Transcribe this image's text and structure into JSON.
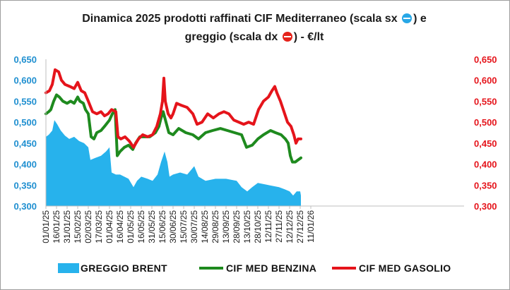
{
  "title": {
    "part1": "Dinamica 2025 prodotti raffinati CIF Mediterraneo (scala sx",
    "part2": ") e",
    "part3": "greggio (scala dx",
    "part4": ") - €/lt",
    "icon_left": "blue-circle-minus-icon",
    "icon_right": "red-circle-minus-icon"
  },
  "chart_data": {
    "type": "line",
    "x_ticks": [
      "01/01/25",
      "16/01/25",
      "31/01/25",
      "15/02/25",
      "02/03/25",
      "17/03/25",
      "01/04/25",
      "16/04/25",
      "01/05/25",
      "16/05/25",
      "31/05/25",
      "15/06/25",
      "30/06/25",
      "15/07/25",
      "30/07/25",
      "14/08/25",
      "29/08/25",
      "13/09/25",
      "28/09/25",
      "13/10/25",
      "28/10/25",
      "12/11/25",
      "27/11/25",
      "12/12/25",
      "27/12/25",
      "11/01/26"
    ],
    "y_left_ticks": [
      "0,650",
      "0,600",
      "0,550",
      "0,500",
      "0,450",
      "0,400",
      "0,350",
      "0,300"
    ],
    "y_right_ticks": [
      "0,650",
      "0,600",
      "0,550",
      "0,500",
      "0,450",
      "0,400",
      "0,350",
      "0,300"
    ],
    "ylim": [
      0.3,
      0.65
    ],
    "colors": {
      "brent": "#27b2ec",
      "benzina": "#1e8a1e",
      "gasolio": "#e5141b",
      "left_axis": "#1f8fd0",
      "right_axis": "#e5141b"
    },
    "series": [
      {
        "name": "GREGGIO BRENT",
        "kind": "area",
        "points": [
          [
            "01/01/25",
            0.465
          ],
          [
            "05/01/25",
            0.47
          ],
          [
            "10/01/25",
            0.48
          ],
          [
            "13/01/25",
            0.505
          ],
          [
            "17/01/25",
            0.495
          ],
          [
            "22/01/25",
            0.48
          ],
          [
            "28/01/25",
            0.468
          ],
          [
            "03/02/25",
            0.46
          ],
          [
            "10/02/25",
            0.465
          ],
          [
            "17/02/25",
            0.455
          ],
          [
            "24/02/25",
            0.45
          ],
          [
            "02/03/25",
            0.44
          ],
          [
            "05/03/25",
            0.41
          ],
          [
            "12/03/25",
            0.415
          ],
          [
            "20/03/25",
            0.42
          ],
          [
            "27/03/25",
            0.43
          ],
          [
            "01/04/25",
            0.44
          ],
          [
            "04/04/25",
            0.38
          ],
          [
            "10/04/25",
            0.375
          ],
          [
            "16/04/25",
            0.375
          ],
          [
            "22/04/25",
            0.37
          ],
          [
            "28/04/25",
            0.365
          ],
          [
            "05/05/25",
            0.345
          ],
          [
            "10/05/25",
            0.36
          ],
          [
            "16/05/25",
            0.37
          ],
          [
            "25/05/25",
            0.365
          ],
          [
            "01/06/25",
            0.36
          ],
          [
            "08/06/25",
            0.375
          ],
          [
            "13/06/25",
            0.405
          ],
          [
            "18/06/25",
            0.43
          ],
          [
            "22/06/25",
            0.405
          ],
          [
            "25/06/25",
            0.37
          ],
          [
            "30/06/25",
            0.375
          ],
          [
            "10/07/25",
            0.38
          ],
          [
            "20/07/25",
            0.375
          ],
          [
            "30/07/25",
            0.395
          ],
          [
            "05/08/25",
            0.37
          ],
          [
            "15/08/25",
            0.36
          ],
          [
            "29/08/25",
            0.365
          ],
          [
            "13/09/25",
            0.365
          ],
          [
            "28/09/25",
            0.36
          ],
          [
            "05/10/25",
            0.345
          ],
          [
            "13/10/25",
            0.335
          ],
          [
            "20/10/25",
            0.345
          ],
          [
            "28/10/25",
            0.355
          ],
          [
            "12/11/25",
            0.35
          ],
          [
            "27/11/25",
            0.345
          ],
          [
            "05/12/25",
            0.34
          ],
          [
            "12/12/25",
            0.335
          ],
          [
            "17/12/25",
            0.325
          ],
          [
            "22/12/25",
            0.335
          ],
          [
            "27/12/25",
            0.335
          ],
          [
            "28/12/25",
            0.325
          ]
        ]
      },
      {
        "name": "CIF MED BENZINA",
        "kind": "line",
        "points": [
          [
            "01/01/25",
            0.52
          ],
          [
            "05/01/25",
            0.525
          ],
          [
            "08/01/25",
            0.53
          ],
          [
            "12/01/25",
            0.55
          ],
          [
            "16/01/25",
            0.565
          ],
          [
            "20/01/25",
            0.56
          ],
          [
            "25/01/25",
            0.55
          ],
          [
            "31/01/25",
            0.545
          ],
          [
            "05/02/25",
            0.55
          ],
          [
            "10/02/25",
            0.545
          ],
          [
            "15/02/25",
            0.56
          ],
          [
            "18/02/25",
            0.55
          ],
          [
            "23/02/25",
            0.545
          ],
          [
            "26/02/25",
            0.53
          ],
          [
            "02/03/25",
            0.52
          ],
          [
            "06/03/25",
            0.465
          ],
          [
            "10/03/25",
            0.46
          ],
          [
            "14/03/25",
            0.475
          ],
          [
            "20/03/25",
            0.48
          ],
          [
            "25/03/25",
            0.49
          ],
          [
            "01/04/25",
            0.505
          ],
          [
            "05/04/25",
            0.52
          ],
          [
            "09/04/25",
            0.53
          ],
          [
            "12/04/25",
            0.42
          ],
          [
            "16/04/25",
            0.43
          ],
          [
            "22/04/25",
            0.44
          ],
          [
            "28/04/25",
            0.445
          ],
          [
            "04/05/25",
            0.435
          ],
          [
            "08/05/25",
            0.45
          ],
          [
            "14/05/25",
            0.465
          ],
          [
            "20/05/25",
            0.465
          ],
          [
            "28/05/25",
            0.465
          ],
          [
            "05/06/25",
            0.475
          ],
          [
            "10/06/25",
            0.49
          ],
          [
            "13/06/25",
            0.51
          ],
          [
            "16/06/25",
            0.525
          ],
          [
            "20/06/25",
            0.5
          ],
          [
            "24/06/25",
            0.475
          ],
          [
            "30/06/25",
            0.47
          ],
          [
            "08/07/25",
            0.485
          ],
          [
            "18/07/25",
            0.475
          ],
          [
            "28/07/25",
            0.47
          ],
          [
            "05/08/25",
            0.46
          ],
          [
            "15/08/25",
            0.475
          ],
          [
            "25/08/25",
            0.48
          ],
          [
            "05/09/25",
            0.485
          ],
          [
            "15/09/25",
            0.48
          ],
          [
            "25/09/25",
            0.475
          ],
          [
            "05/10/25",
            0.47
          ],
          [
            "12/10/25",
            0.44
          ],
          [
            "20/10/25",
            0.445
          ],
          [
            "28/10/25",
            0.46
          ],
          [
            "05/11/25",
            0.47
          ],
          [
            "15/11/25",
            0.48
          ],
          [
            "22/11/25",
            0.475
          ],
          [
            "30/11/25",
            0.47
          ],
          [
            "06/12/25",
            0.46
          ],
          [
            "10/12/25",
            0.45
          ],
          [
            "13/12/25",
            0.42
          ],
          [
            "16/12/25",
            0.405
          ],
          [
            "20/12/25",
            0.405
          ],
          [
            "24/12/25",
            0.41
          ],
          [
            "28/12/25",
            0.415
          ]
        ]
      },
      {
        "name": "CIF MED GASOLIO",
        "kind": "line",
        "points": [
          [
            "01/01/25",
            0.57
          ],
          [
            "06/01/25",
            0.575
          ],
          [
            "10/01/25",
            0.59
          ],
          [
            "14/01/25",
            0.625
          ],
          [
            "19/01/25",
            0.62
          ],
          [
            "23/01/25",
            0.6
          ],
          [
            "28/01/25",
            0.59
          ],
          [
            "04/02/25",
            0.585
          ],
          [
            "10/02/25",
            0.58
          ],
          [
            "15/02/25",
            0.595
          ],
          [
            "20/02/25",
            0.575
          ],
          [
            "25/02/25",
            0.57
          ],
          [
            "02/03/25",
            0.55
          ],
          [
            "08/03/25",
            0.525
          ],
          [
            "14/03/25",
            0.52
          ],
          [
            "20/03/25",
            0.525
          ],
          [
            "25/03/25",
            0.515
          ],
          [
            "30/03/25",
            0.52
          ],
          [
            "04/04/25",
            0.53
          ],
          [
            "10/04/25",
            0.525
          ],
          [
            "13/04/25",
            0.465
          ],
          [
            "17/04/25",
            0.46
          ],
          [
            "23/04/25",
            0.465
          ],
          [
            "29/04/25",
            0.455
          ],
          [
            "05/05/25",
            0.44
          ],
          [
            "12/05/25",
            0.46
          ],
          [
            "18/05/25",
            0.47
          ],
          [
            "25/05/25",
            0.465
          ],
          [
            "01/06/25",
            0.47
          ],
          [
            "07/06/25",
            0.49
          ],
          [
            "12/06/25",
            0.52
          ],
          [
            "15/06/25",
            0.55
          ],
          [
            "17/06/25",
            0.605
          ],
          [
            "19/06/25",
            0.55
          ],
          [
            "23/06/25",
            0.52
          ],
          [
            "27/06/25",
            0.51
          ],
          [
            "30/06/25",
            0.52
          ],
          [
            "05/07/25",
            0.545
          ],
          [
            "12/07/25",
            0.54
          ],
          [
            "20/07/25",
            0.535
          ],
          [
            "28/07/25",
            0.52
          ],
          [
            "03/08/25",
            0.495
          ],
          [
            "10/08/25",
            0.5
          ],
          [
            "18/08/25",
            0.52
          ],
          [
            "26/08/25",
            0.51
          ],
          [
            "03/09/25",
            0.52
          ],
          [
            "10/09/25",
            0.525
          ],
          [
            "17/09/25",
            0.52
          ],
          [
            "24/09/25",
            0.505
          ],
          [
            "01/10/25",
            0.5
          ],
          [
            "08/10/25",
            0.495
          ],
          [
            "15/10/25",
            0.5
          ],
          [
            "22/10/25",
            0.495
          ],
          [
            "29/10/25",
            0.53
          ],
          [
            "05/11/25",
            0.55
          ],
          [
            "12/11/25",
            0.56
          ],
          [
            "17/11/25",
            0.575
          ],
          [
            "21/11/25",
            0.585
          ],
          [
            "24/11/25",
            0.57
          ],
          [
            "29/11/25",
            0.55
          ],
          [
            "04/12/25",
            0.525
          ],
          [
            "09/12/25",
            0.5
          ],
          [
            "14/12/25",
            0.49
          ],
          [
            "18/12/25",
            0.47
          ],
          [
            "21/12/25",
            0.45
          ],
          [
            "24/12/25",
            0.46
          ],
          [
            "28/12/25",
            0.46
          ]
        ]
      }
    ],
    "legend": [
      "GREGGIO BRENT",
      "CIF MED BENZINA",
      "CIF MED GASOLIO"
    ],
    "legend_position": "bottom",
    "grid": false
  }
}
